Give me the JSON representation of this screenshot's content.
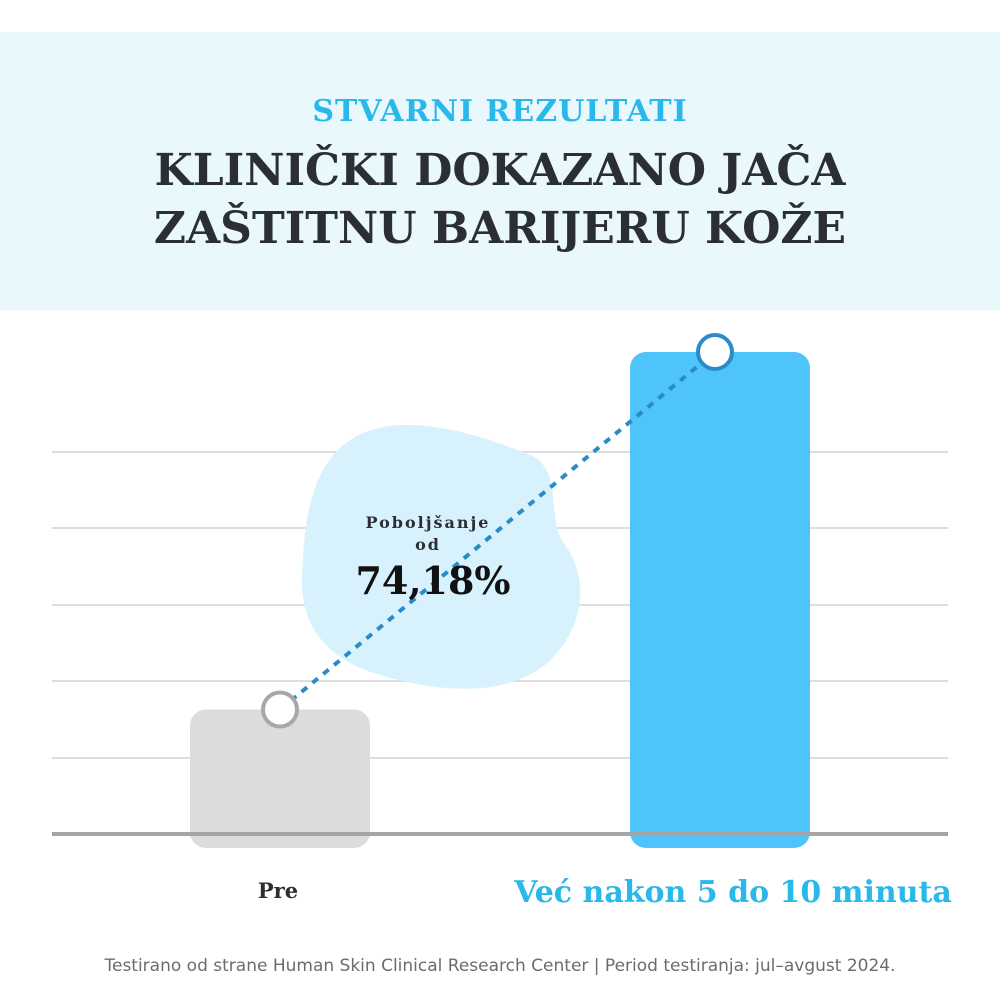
{
  "header": {
    "subtitle": "STVARNI REZULTATI",
    "title": "KLINIČKI DOKAZANO JAČA ZAŠTITNU BARIJERU KOŽE"
  },
  "chart_data": {
    "type": "bar",
    "categories": [
      "Pre",
      "Već nakon 5 do 10 minuta"
    ],
    "values": [
      25.82,
      100
    ],
    "ylim": [
      0,
      100
    ],
    "grid": true,
    "annotation": {
      "label": "Poboljšanje od",
      "value": "74,18%"
    }
  },
  "colors": {
    "before_bar": "#dcdcdc",
    "after_bar": "#4fc4fb",
    "accent": "#29b8ea",
    "connector": "#2a8cc7",
    "bubble": "#d8f2fd",
    "grid": "#dedede",
    "baseline": "#a5a5a5"
  },
  "footnote": "Testirano od strane Human Skin Clinical Research Center | Period testiranja: jul–avgust 2024."
}
